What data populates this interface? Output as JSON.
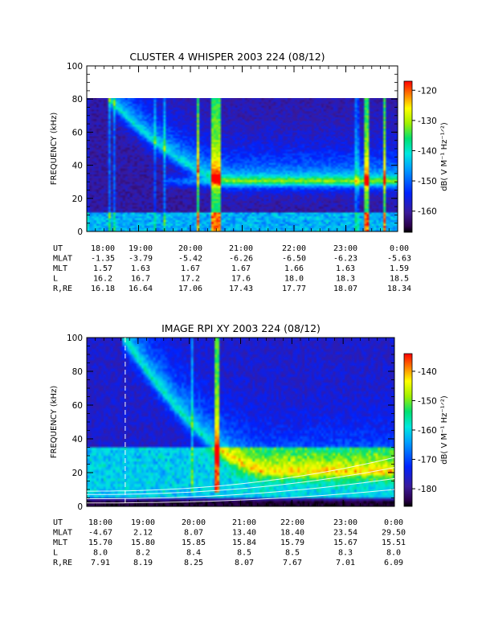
{
  "chart_data": [
    {
      "type": "heatmap",
      "title": "CLUSTER 4 WHISPER 2003 224 (08/12)",
      "ylabel": "FREQUENCY (kHz)",
      "ylim": [
        0,
        100
      ],
      "yticks": [
        "0",
        "20",
        "40",
        "60",
        "80",
        "100"
      ],
      "data_ymax": 80,
      "xlim_hours": [
        18,
        24
      ],
      "x_tick_labels": [
        "18:00",
        "19:00",
        "20:00",
        "21:00",
        "22:00",
        "23:00",
        "0:00"
      ],
      "colorbar": {
        "label": "dB( V M⁻¹ Hz⁻¹ᐟ²)",
        "range": [
          -167,
          -117
        ],
        "ticks": [
          "-120",
          "-130",
          "-140",
          "-150",
          "-160"
        ],
        "tick_values": [
          -120,
          -130,
          -140,
          -150,
          -160
        ]
      },
      "ephemeris": [
        {
          "label": "UT",
          "values": [
            "18:00",
            "19:00",
            "20:00",
            "21:00",
            "22:00",
            "23:00",
            "0:00"
          ]
        },
        {
          "label": "MLAT",
          "values": [
            "-1.35",
            "-3.79",
            "-5.42",
            "-6.26",
            "-6.50",
            "-6.23",
            "-5.63"
          ]
        },
        {
          "label": "MLT",
          "values": [
            "1.57",
            "1.63",
            "1.67",
            "1.67",
            "1.66",
            "1.63",
            "1.59"
          ]
        },
        {
          "label": "L",
          "values": [
            "16.2",
            "16.7",
            "17.2",
            "17.6",
            "18.0",
            "18.3",
            "18.5"
          ]
        },
        {
          "label": "R,RE",
          "values": [
            "16.18",
            "16.64",
            "17.06",
            "17.43",
            "17.77",
            "18.07",
            "18.34"
          ]
        }
      ],
      "features": {
        "background_dB": -160,
        "dispersive_band": {
          "f_start_kHz": 80,
          "f_end_kHz": 30,
          "t_start_h": 18.4,
          "t_end_h": 20.8
        },
        "continuum_band_kHz": 30,
        "low_band_kHz": [
          0,
          12
        ],
        "bright_spikes_h": [
          20.15,
          20.45,
          20.55,
          23.4,
          23.75
        ]
      }
    },
    {
      "type": "heatmap",
      "title": "IMAGE RPI XY 2003 224 (08/12)",
      "ylabel": "FREQUENCY (kHz)",
      "ylim": [
        0,
        100
      ],
      "yticks": [
        "0",
        "20",
        "40",
        "60",
        "80",
        "100"
      ],
      "data_ymax": 100,
      "xlim_hours": [
        18,
        24
      ],
      "x_tick_labels": [
        "18:00",
        "19:00",
        "20:00",
        "21:00",
        "22:00",
        "23:00",
        "0:00"
      ],
      "colorbar": {
        "label": "dB( V M⁻¹ Hz⁻¹ᐟ²)",
        "range": [
          -186,
          -134
        ],
        "ticks": [
          "-140",
          "-150",
          "-160",
          "-170",
          "-180"
        ],
        "tick_values": [
          -140,
          -150,
          -160,
          -170,
          -180
        ]
      },
      "ephemeris": [
        {
          "label": "UT",
          "values": [
            "18:00",
            "19:00",
            "20:00",
            "21:00",
            "22:00",
            "23:00",
            "0:00"
          ]
        },
        {
          "label": "MLAT",
          "values": [
            "-4.67",
            "2.12",
            "8.07",
            "13.40",
            "18.40",
            "23.54",
            "29.50"
          ]
        },
        {
          "label": "MLT",
          "values": [
            "15.70",
            "15.80",
            "15.85",
            "15.84",
            "15.79",
            "15.67",
            "15.51"
          ]
        },
        {
          "label": "L",
          "values": [
            "8.0",
            "8.2",
            "8.4",
            "8.5",
            "8.5",
            "8.3",
            "8.0"
          ]
        },
        {
          "label": "R,RE",
          "values": [
            "7.91",
            "8.19",
            "8.25",
            "8.07",
            "7.67",
            "7.01",
            "6.09"
          ]
        }
      ],
      "features": {
        "background_dB": -176,
        "dispersive_band": {
          "f_start_kHz": 100,
          "f_end_kHz": 20,
          "t_start_h": 18.7,
          "t_end_h": 21.5
        },
        "low_band_kHz": [
          5,
          35
        ],
        "bright_spikes_h": [
          20.55
        ],
        "dashed_line_h": 18.75
      }
    }
  ]
}
